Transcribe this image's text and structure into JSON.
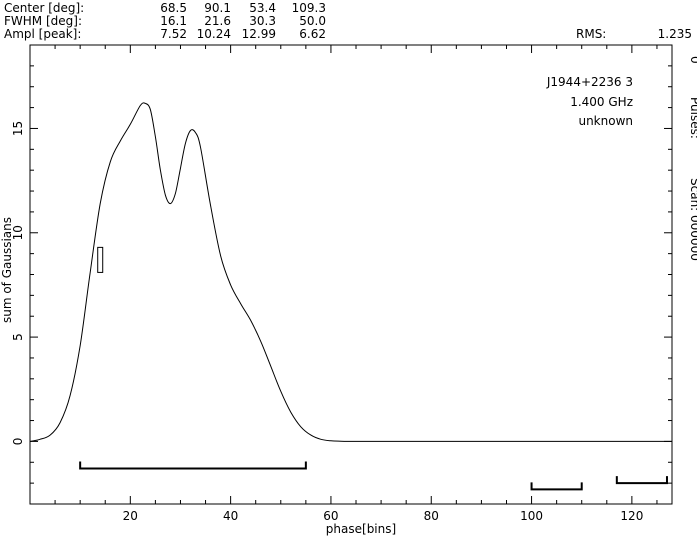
{
  "header": {
    "rows": [
      {
        "label": "Center [deg]:",
        "values": [
          "68.5",
          "90.1",
          "53.4",
          "109.3"
        ]
      },
      {
        "label": "FWHM  [deg]:",
        "values": [
          "16.1",
          "21.6",
          "30.3",
          "50.0"
        ]
      },
      {
        "label": "Ampl  [peak]:",
        "values": [
          "7.52",
          "10.24",
          "12.99",
          "6.62"
        ]
      }
    ],
    "rms_label": "RMS:",
    "rms_value": "1.235"
  },
  "info": {
    "source": "J1944+2236 3",
    "frequency": "1.400 GHz",
    "status": "unknown"
  },
  "right_labels": {
    "pulses": "Pulses:",
    "pulses_value": "0",
    "scan": "Scan: 000000"
  },
  "chart_data": {
    "type": "line",
    "xlabel": "phase[bins]",
    "ylabel": "sum of Gaussians",
    "xlim": [
      0,
      128
    ],
    "ylim": [
      -3,
      19
    ],
    "x_ticks": [
      20,
      40,
      60,
      80,
      100,
      120
    ],
    "y_ticks": [
      0,
      5,
      10,
      15
    ],
    "grid": false,
    "x": [
      0,
      2,
      4,
      6,
      8,
      10,
      12,
      14,
      16,
      18,
      20,
      22,
      23,
      24,
      25,
      26,
      27,
      28,
      29,
      30,
      31,
      32,
      33,
      34,
      36,
      38,
      40,
      42,
      44,
      46,
      48,
      50,
      52,
      54,
      56,
      58,
      60,
      62,
      64,
      66,
      68,
      70,
      80,
      90,
      100,
      110,
      120,
      128
    ],
    "y": [
      0,
      0.1,
      0.3,
      0.9,
      2.2,
      4.6,
      8.1,
      11.4,
      13.4,
      14.4,
      15.2,
      16.1,
      16.2,
      15.9,
      14.6,
      13.0,
      11.8,
      11.4,
      11.9,
      13.1,
      14.3,
      14.9,
      14.8,
      14.1,
      11.3,
      8.9,
      7.5,
      6.6,
      5.8,
      4.8,
      3.6,
      2.4,
      1.4,
      0.7,
      0.3,
      0.1,
      0.03,
      0.01,
      0,
      0,
      0,
      0,
      0,
      0,
      0,
      0,
      0,
      0
    ],
    "markers": {
      "box": {
        "x": 14,
        "y_low": 8.1,
        "y_high": 9.3
      },
      "brackets": [
        {
          "x_start": 10,
          "x_end": 55,
          "y": -1.3
        },
        {
          "x_start": 100,
          "x_end": 110,
          "y": -2.3
        },
        {
          "x_start": 117,
          "x_end": 127,
          "y": -2.0
        }
      ]
    }
  }
}
